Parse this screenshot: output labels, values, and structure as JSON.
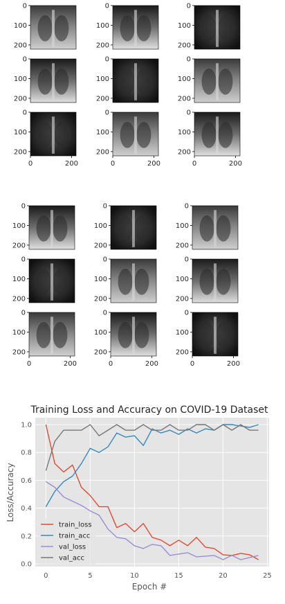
{
  "grids": [
    {
      "name": "grid-1",
      "rows": 3,
      "cols": 3,
      "y_ticks": [
        "0",
        "100",
        "200"
      ],
      "x_ticks": [
        "0",
        "200"
      ],
      "x_ticks_shown_on_row": 3
    },
    {
      "name": "grid-2",
      "rows": 3,
      "cols": 3,
      "y_ticks": [
        "0",
        "100",
        "200"
      ],
      "x_ticks": [
        "0",
        "200"
      ],
      "x_ticks_shown_on_row": 3
    }
  ],
  "chart_data": {
    "type": "line",
    "title": "Training Loss and Accuracy on COVID-19 Dataset",
    "xlabel": "Epoch #",
    "ylabel": "Loss/Accuracy",
    "xlim": [
      -1.2,
      25.2
    ],
    "ylim": [
      -0.02,
      1.05
    ],
    "x_ticks": [
      "0",
      "5",
      "10",
      "15",
      "20",
      "25"
    ],
    "y_ticks": [
      "0.0",
      "0.2",
      "0.4",
      "0.6",
      "0.8",
      "1.0"
    ],
    "grid": true,
    "style": "ggplot",
    "legend_position": "lower-left",
    "x": [
      0,
      1,
      2,
      3,
      4,
      5,
      6,
      7,
      8,
      9,
      10,
      11,
      12,
      13,
      14,
      15,
      16,
      17,
      18,
      19,
      20,
      21,
      22,
      23,
      24
    ],
    "series": [
      {
        "name": "train_loss",
        "color": "#E24A33",
        "values": [
          1.0,
          0.72,
          0.66,
          0.71,
          0.55,
          0.49,
          0.41,
          0.41,
          0.26,
          0.29,
          0.23,
          0.29,
          0.19,
          0.17,
          0.13,
          0.17,
          0.13,
          0.19,
          0.12,
          0.11,
          0.065,
          0.06,
          0.075,
          0.065,
          0.03
        ]
      },
      {
        "name": "train_acc",
        "color": "#348ABD",
        "values": [
          0.41,
          0.52,
          0.59,
          0.63,
          0.72,
          0.83,
          0.8,
          0.84,
          0.94,
          0.91,
          0.92,
          0.85,
          0.97,
          0.94,
          0.96,
          0.93,
          0.97,
          0.94,
          0.97,
          0.96,
          1.0,
          1.0,
          0.99,
          0.98,
          1.0
        ]
      },
      {
        "name": "val_loss",
        "color": "#988ED5",
        "values": [
          0.59,
          0.55,
          0.48,
          0.45,
          0.42,
          0.38,
          0.35,
          0.25,
          0.19,
          0.18,
          0.13,
          0.11,
          0.14,
          0.13,
          0.06,
          0.07,
          0.08,
          0.05,
          0.055,
          0.06,
          0.03,
          0.06,
          0.03,
          0.045,
          0.06
        ]
      },
      {
        "name": "val_acc",
        "color": "#777777",
        "values": [
          0.67,
          0.88,
          0.96,
          0.96,
          0.96,
          1.0,
          0.92,
          0.96,
          1.0,
          0.96,
          0.96,
          1.0,
          0.96,
          0.96,
          1.0,
          0.96,
          0.96,
          1.0,
          1.0,
          0.96,
          1.0,
          0.96,
          1.0,
          0.96,
          0.96
        ]
      }
    ]
  }
}
